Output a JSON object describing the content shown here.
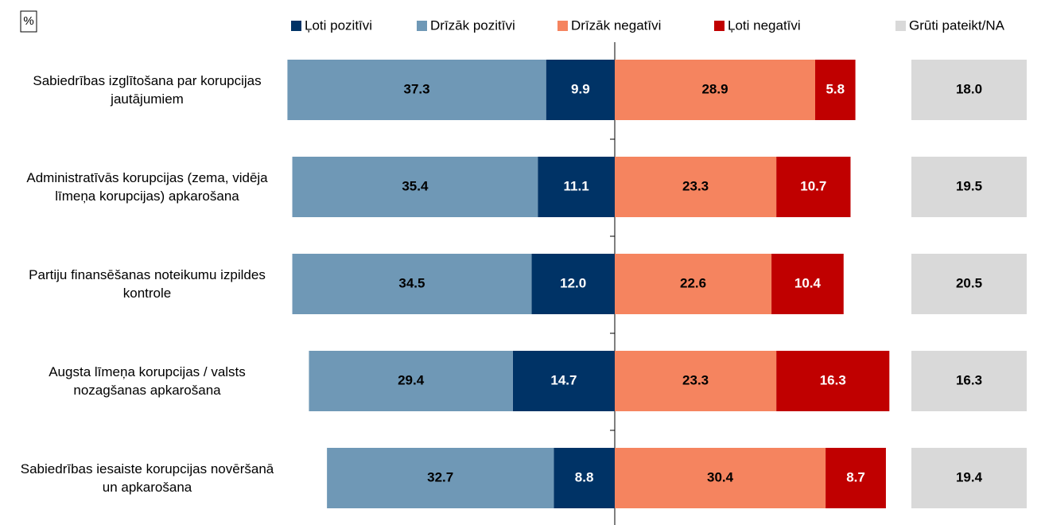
{
  "chart_data": {
    "type": "diverging_bar",
    "unit": "%",
    "categories": [
      "Sabiedrības izglītošana par korupcijas jautājumiem",
      "Administratīvās korupcijas (zema, vidēja līmeņa korupcijas) apkarošana",
      "Partiju finansēšanas noteikumu izpildes kontrole",
      "Augsta līmeņa korupcijas / valsts nozagšanas apkarošana",
      "Sabiedrības iesaiste korupcijas novēršanā un apkarošana"
    ],
    "series": [
      {
        "name": "Ļoti pozitīvi",
        "color": "#003366",
        "side": "left",
        "values": [
          9.9,
          11.1,
          12,
          14.7,
          8.8
        ],
        "value_labels": [
          "9.9",
          "11.1",
          "12.0",
          "14.7",
          "8.8"
        ]
      },
      {
        "name": "Drīzāk pozitīvi",
        "color": "#6f98b6",
        "side": "left",
        "values": [
          37.3,
          35.4,
          34.5,
          29.4,
          32.7
        ],
        "value_labels": [
          "37.3",
          "35.4",
          "34.5",
          "29.4",
          "32.7"
        ]
      },
      {
        "name": "Drīzāk negatīvi",
        "color": "#f5845f",
        "side": "right",
        "values": [
          28.9,
          23.3,
          22.6,
          23.3,
          30.4
        ],
        "value_labels": [
          "28.9",
          "23.3",
          "22.6",
          "23.3",
          "30.4"
        ]
      },
      {
        "name": "Ļoti negatīvi",
        "color": "#c00000",
        "side": "right",
        "values": [
          5.8,
          10.7,
          10.4,
          16.3,
          8.7
        ],
        "value_labels": [
          "5.8",
          "10.7",
          "10.4",
          "16.3",
          "8.7"
        ]
      },
      {
        "name": "Grūti pateikt/NA",
        "color": "#d9d9d9",
        "side": "separate",
        "values": [
          18,
          19.5,
          20.5,
          16.3,
          19.4
        ],
        "value_labels": [
          "18.0",
          "19.5",
          "20.5",
          "16.3",
          "19.4"
        ]
      }
    ]
  }
}
